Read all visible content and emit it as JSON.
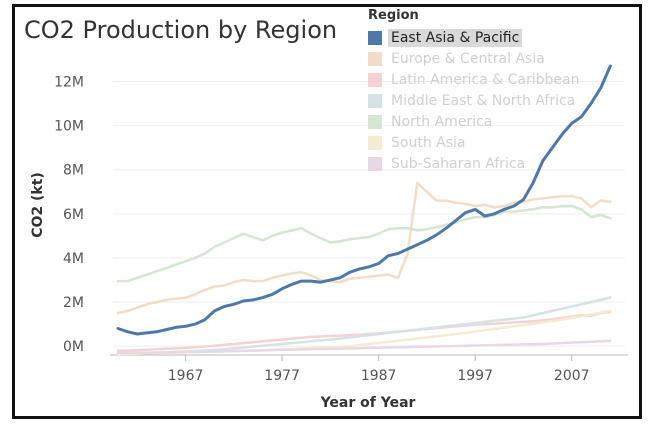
{
  "chart_data": {
    "type": "line",
    "title": "CO2 Production by Region",
    "xlabel": "Year of Year",
    "ylabel": "CO2 (kt)",
    "legend_title": "Region",
    "xlim": [
      1960,
      2012
    ],
    "ylim": [
      -0.4,
      13.2
    ],
    "x_ticks": [
      1967,
      1977,
      1987,
      1997,
      2007
    ],
    "y_ticks": [
      {
        "v": 0,
        "label": "0M"
      },
      {
        "v": 2,
        "label": "2M"
      },
      {
        "v": 4,
        "label": "4M"
      },
      {
        "v": 6,
        "label": "6M"
      },
      {
        "v": 8,
        "label": "8M"
      },
      {
        "v": 10,
        "label": "10M"
      },
      {
        "v": 12,
        "label": "12M"
      }
    ],
    "x": [
      1960,
      1961,
      1962,
      1963,
      1964,
      1965,
      1966,
      1967,
      1968,
      1969,
      1970,
      1971,
      1972,
      1973,
      1974,
      1975,
      1976,
      1977,
      1978,
      1979,
      1980,
      1981,
      1982,
      1983,
      1984,
      1985,
      1986,
      1987,
      1988,
      1989,
      1990,
      1991,
      1992,
      1993,
      1994,
      1995,
      1996,
      1997,
      1998,
      1999,
      2000,
      2001,
      2002,
      2003,
      2004,
      2005,
      2006,
      2007,
      2008,
      2009,
      2010,
      2011
    ],
    "series": [
      {
        "name": "East Asia & Pacific",
        "color": "#4e79a7",
        "highlight": true,
        "values": [
          0.8,
          0.65,
          0.55,
          0.6,
          0.65,
          0.75,
          0.85,
          0.9,
          1.0,
          1.2,
          1.6,
          1.8,
          1.9,
          2.05,
          2.1,
          2.2,
          2.35,
          2.6,
          2.8,
          2.95,
          2.95,
          2.9,
          3.0,
          3.1,
          3.35,
          3.5,
          3.6,
          3.75,
          4.1,
          4.2,
          4.4,
          4.6,
          4.8,
          5.05,
          5.35,
          5.7,
          6.05,
          6.2,
          5.9,
          6.0,
          6.2,
          6.35,
          6.65,
          7.4,
          8.4,
          9.0,
          9.6,
          10.1,
          10.4,
          11.0,
          11.7,
          12.7
        ]
      },
      {
        "name": "Europe & Central Asia",
        "color": "#f1ddc8",
        "values": [
          1.5,
          1.6,
          1.75,
          1.9,
          2.0,
          2.1,
          2.15,
          2.2,
          2.35,
          2.55,
          2.7,
          2.75,
          2.9,
          3.0,
          2.95,
          2.95,
          3.1,
          3.2,
          3.3,
          3.35,
          3.2,
          3.0,
          2.95,
          2.9,
          3.05,
          3.1,
          3.15,
          3.2,
          3.25,
          3.1,
          4.2,
          7.4,
          7.0,
          6.6,
          6.6,
          6.5,
          6.45,
          6.35,
          6.4,
          6.3,
          6.35,
          6.5,
          6.55,
          6.65,
          6.7,
          6.75,
          6.8,
          6.8,
          6.7,
          6.3,
          6.6,
          6.55
        ]
      },
      {
        "name": "Latin America & Caribbean",
        "color": "#f5d2d4",
        "values": [
          -0.2,
          -0.2,
          -0.18,
          -0.16,
          -0.14,
          -0.12,
          -0.1,
          -0.08,
          -0.05,
          -0.02,
          0.02,
          0.06,
          0.1,
          0.14,
          0.18,
          0.22,
          0.26,
          0.3,
          0.34,
          0.38,
          0.42,
          0.44,
          0.46,
          0.48,
          0.5,
          0.52,
          0.55,
          0.58,
          0.62,
          0.66,
          0.7,
          0.74,
          0.78,
          0.82,
          0.86,
          0.9,
          0.94,
          0.98,
          1.0,
          1.02,
          1.05,
          1.08,
          1.1,
          1.13,
          1.17,
          1.22,
          1.28,
          1.34,
          1.4,
          1.38,
          1.5,
          1.55
        ]
      },
      {
        "name": "Middle East & North Africa",
        "color": "#d6e3e4",
        "values": [
          -0.35,
          -0.34,
          -0.33,
          -0.32,
          -0.3,
          -0.28,
          -0.26,
          -0.24,
          -0.22,
          -0.2,
          -0.17,
          -0.14,
          -0.1,
          -0.06,
          -0.02,
          0.02,
          0.06,
          0.1,
          0.14,
          0.18,
          0.22,
          0.26,
          0.3,
          0.35,
          0.4,
          0.45,
          0.5,
          0.55,
          0.6,
          0.65,
          0.7,
          0.75,
          0.8,
          0.85,
          0.9,
          0.95,
          1.0,
          1.05,
          1.1,
          1.15,
          1.2,
          1.25,
          1.3,
          1.4,
          1.5,
          1.6,
          1.7,
          1.8,
          1.9,
          2.0,
          2.1,
          2.2
        ]
      },
      {
        "name": "North America",
        "color": "#d6e6d3",
        "values": [
          2.95,
          2.95,
          3.1,
          3.25,
          3.4,
          3.55,
          3.7,
          3.85,
          4.0,
          4.2,
          4.5,
          4.7,
          4.9,
          5.1,
          4.95,
          4.8,
          5.0,
          5.15,
          5.25,
          5.35,
          5.1,
          4.9,
          4.7,
          4.75,
          4.85,
          4.9,
          4.95,
          5.1,
          5.3,
          5.35,
          5.35,
          5.25,
          5.3,
          5.4,
          5.5,
          5.6,
          5.75,
          5.85,
          5.85,
          5.95,
          6.1,
          6.1,
          6.15,
          6.2,
          6.3,
          6.3,
          6.35,
          6.35,
          6.2,
          5.85,
          5.95,
          5.8
        ]
      },
      {
        "name": "South Asia",
        "color": "#f3ecd1",
        "values": [
          -0.35,
          -0.34,
          -0.33,
          -0.32,
          -0.31,
          -0.3,
          -0.29,
          -0.28,
          -0.27,
          -0.26,
          -0.25,
          -0.24,
          -0.23,
          -0.22,
          -0.2,
          -0.18,
          -0.16,
          -0.14,
          -0.12,
          -0.1,
          -0.08,
          -0.06,
          -0.04,
          -0.02,
          0.0,
          0.05,
          0.1,
          0.15,
          0.2,
          0.25,
          0.3,
          0.35,
          0.4,
          0.45,
          0.5,
          0.55,
          0.6,
          0.66,
          0.72,
          0.78,
          0.84,
          0.9,
          0.96,
          1.02,
          1.08,
          1.14,
          1.2,
          1.28,
          1.36,
          1.44,
          1.52,
          1.6
        ]
      },
      {
        "name": "Sub-Saharan Africa",
        "color": "#e8d8e6",
        "values": [
          -0.3,
          -0.3,
          -0.29,
          -0.29,
          -0.28,
          -0.28,
          -0.27,
          -0.27,
          -0.26,
          -0.25,
          -0.24,
          -0.23,
          -0.22,
          -0.21,
          -0.2,
          -0.19,
          -0.18,
          -0.17,
          -0.16,
          -0.15,
          -0.14,
          -0.13,
          -0.12,
          -0.11,
          -0.1,
          -0.09,
          -0.08,
          -0.07,
          -0.06,
          -0.05,
          -0.04,
          -0.03,
          -0.02,
          -0.01,
          0.0,
          0.01,
          0.02,
          0.03,
          0.04,
          0.05,
          0.06,
          0.07,
          0.08,
          0.09,
          0.1,
          0.12,
          0.14,
          0.16,
          0.18,
          0.2,
          0.22,
          0.24
        ]
      }
    ]
  }
}
